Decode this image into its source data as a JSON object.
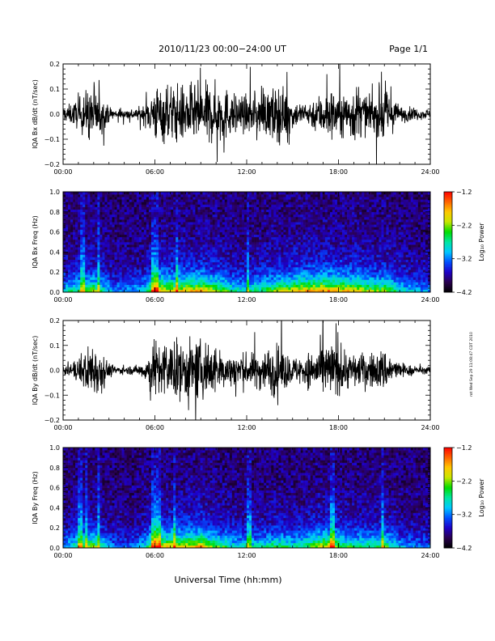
{
  "header": {
    "title": "2010/11/23  00:00−24:00 UT",
    "page_label": "Page 1/1"
  },
  "footer": {
    "xaxis_title": "Universal Time (hh:mm)",
    "timestamp": "rot Wed Sep 29 11:08:47 CDT 2010"
  },
  "colors": {
    "waveform": "#000000",
    "colormap": [
      "#000000",
      "#2a0050",
      "#1e00c8",
      "#0050ff",
      "#00c8ff",
      "#00e6a0",
      "#00dc00",
      "#c8e600",
      "#ffc800",
      "#ff6400",
      "#ff0000"
    ]
  },
  "chart_data": [
    {
      "type": "line",
      "ylabel": "IQA Bx dB/dt (nT/sec)",
      "xlim": [
        0,
        24
      ],
      "ylim": [
        -0.2,
        0.2
      ],
      "x_ticks": [
        "00:00",
        "06:00",
        "12:00",
        "18:00",
        "24:00"
      ],
      "y_ticks": [
        "−0.2",
        "−0.1",
        "0.0",
        "0.1",
        "0.2"
      ],
      "envelope_hours": [
        0,
        0.5,
        1,
        1.5,
        2,
        2.5,
        3,
        3.5,
        4,
        4.5,
        5,
        5.5,
        6,
        6.5,
        7,
        7.5,
        8,
        8.5,
        9,
        9.5,
        10,
        10.5,
        11,
        11.5,
        12,
        12.5,
        13,
        13.5,
        14,
        14.5,
        15,
        15.5,
        16,
        16.5,
        17,
        17.5,
        18,
        18.5,
        19,
        19.5,
        20,
        20.5,
        21,
        21.5,
        22,
        22.5,
        23,
        23.5,
        24
      ],
      "envelope_amplitude": [
        0.05,
        0.07,
        0.1,
        0.16,
        0.2,
        0.12,
        0.05,
        0.035,
        0.03,
        0.04,
        0.045,
        0.09,
        0.2,
        0.2,
        0.2,
        0.2,
        0.2,
        0.2,
        0.2,
        0.2,
        0.2,
        0.2,
        0.14,
        0.13,
        0.12,
        0.13,
        0.13,
        0.16,
        0.2,
        0.17,
        0.1,
        0.08,
        0.08,
        0.12,
        0.15,
        0.18,
        0.15,
        0.14,
        0.2,
        0.16,
        0.1,
        0.15,
        0.2,
        0.12,
        0.06,
        0.05,
        0.04,
        0.035,
        0.03
      ]
    },
    {
      "type": "heatmap",
      "ylabel": "IQA Bx Freq (Hz)",
      "xlim": [
        0,
        24
      ],
      "ylim": [
        0,
        1
      ],
      "x_ticks": [
        "00:00",
        "06:00",
        "12:00",
        "18:00",
        "24:00"
      ],
      "y_ticks": [
        "0.0",
        "0.2",
        "0.4",
        "0.6",
        "0.8",
        "1.0"
      ],
      "colorbar_label": "Log₁₀ Power",
      "colorbar_range": [
        -4.2,
        -1.2
      ],
      "colorbar_ticks": [
        "−1.2",
        "−2.2",
        "−3.2",
        "−4.2"
      ],
      "activity_hours": [
        0,
        0.5,
        1,
        1.5,
        2,
        2.5,
        3,
        3.5,
        4,
        4.5,
        5,
        5.5,
        6,
        6.5,
        7,
        7.5,
        8,
        8.5,
        9,
        9.5,
        10,
        10.5,
        11,
        11.5,
        12,
        12.5,
        13,
        13.5,
        14,
        14.5,
        15,
        15.5,
        16,
        16.5,
        17,
        17.5,
        18,
        18.5,
        19,
        19.5,
        20,
        20.5,
        21,
        21.5,
        22,
        22.5,
        23,
        23.5,
        24
      ],
      "activity_level": [
        0.35,
        0.45,
        0.55,
        0.6,
        0.65,
        0.5,
        0.35,
        0.3,
        0.28,
        0.3,
        0.35,
        0.5,
        0.8,
        0.8,
        0.75,
        0.75,
        0.8,
        0.8,
        0.85,
        0.75,
        0.7,
        0.65,
        0.5,
        0.45,
        0.45,
        0.5,
        0.55,
        0.6,
        0.7,
        0.7,
        0.75,
        0.8,
        0.85,
        0.85,
        0.9,
        0.9,
        0.85,
        0.8,
        0.8,
        0.75,
        0.65,
        0.65,
        0.7,
        0.55,
        0.45,
        0.4,
        0.35,
        0.3,
        0.3
      ],
      "vertical_streaks_hours": [
        1.3,
        2.3,
        5.9,
        6.15,
        7.4,
        12.1
      ]
    },
    {
      "type": "line",
      "ylabel": "IQA By dB/dt (nT/sec)",
      "xlim": [
        0,
        24
      ],
      "ylim": [
        -0.2,
        0.2
      ],
      "x_ticks": [
        "00:00",
        "06:00",
        "12:00",
        "18:00",
        "24:00"
      ],
      "y_ticks": [
        "−0.2",
        "−0.1",
        "0.0",
        "0.1",
        "0.2"
      ],
      "envelope_hours": [
        0,
        0.5,
        1,
        1.5,
        2,
        2.5,
        3,
        3.5,
        4,
        4.5,
        5,
        5.5,
        6,
        6.5,
        7,
        7.5,
        8,
        8.5,
        9,
        9.5,
        10,
        10.5,
        11,
        11.5,
        12,
        12.5,
        13,
        13.5,
        14,
        14.5,
        15,
        15.5,
        16,
        16.5,
        17,
        17.5,
        18,
        18.5,
        19,
        19.5,
        20,
        20.5,
        21,
        21.5,
        22,
        22.5,
        23,
        23.5,
        24
      ],
      "envelope_amplitude": [
        0.03,
        0.05,
        0.09,
        0.15,
        0.2,
        0.15,
        0.05,
        0.03,
        0.025,
        0.03,
        0.04,
        0.09,
        0.2,
        0.2,
        0.2,
        0.2,
        0.2,
        0.2,
        0.2,
        0.2,
        0.16,
        0.12,
        0.12,
        0.13,
        0.11,
        0.12,
        0.14,
        0.16,
        0.18,
        0.13,
        0.09,
        0.1,
        0.12,
        0.15,
        0.18,
        0.2,
        0.15,
        0.14,
        0.12,
        0.11,
        0.12,
        0.13,
        0.15,
        0.1,
        0.05,
        0.04,
        0.03,
        0.025,
        0.02
      ]
    },
    {
      "type": "heatmap",
      "ylabel": "IQA By Freq (Hz)",
      "xlim": [
        0,
        24
      ],
      "ylim": [
        0,
        1
      ],
      "x_ticks": [
        "00:00",
        "06:00",
        "12:00",
        "18:00",
        "24:00"
      ],
      "y_ticks": [
        "0.0",
        "0.2",
        "0.4",
        "0.6",
        "0.8",
        "1.0"
      ],
      "colorbar_label": "Log₁₀ Power",
      "colorbar_range": [
        -4.2,
        -1.2
      ],
      "colorbar_ticks": [
        "−1.2",
        "−2.2",
        "−3.2",
        "−4.2"
      ],
      "activity_hours": [
        0,
        0.5,
        1,
        1.5,
        2,
        2.5,
        3,
        3.5,
        4,
        4.5,
        5,
        5.5,
        6,
        6.5,
        7,
        7.5,
        8,
        8.5,
        9,
        9.5,
        10,
        10.5,
        11,
        11.5,
        12,
        12.5,
        13,
        13.5,
        14,
        14.5,
        15,
        15.5,
        16,
        16.5,
        17,
        17.5,
        18,
        18.5,
        19,
        19.5,
        20,
        20.5,
        21,
        21.5,
        22,
        22.5,
        23,
        23.5,
        24
      ],
      "activity_level": [
        0.3,
        0.4,
        0.55,
        0.6,
        0.65,
        0.5,
        0.3,
        0.25,
        0.22,
        0.25,
        0.3,
        0.5,
        0.8,
        0.8,
        0.75,
        0.75,
        0.8,
        0.8,
        0.85,
        0.7,
        0.6,
        0.55,
        0.45,
        0.4,
        0.4,
        0.42,
        0.45,
        0.5,
        0.55,
        0.5,
        0.45,
        0.5,
        0.55,
        0.65,
        0.75,
        0.75,
        0.6,
        0.55,
        0.55,
        0.5,
        0.5,
        0.55,
        0.6,
        0.45,
        0.35,
        0.3,
        0.28,
        0.25,
        0.25
      ],
      "vertical_streaks_hours": [
        1.1,
        1.5,
        2.3,
        5.95,
        6.2,
        7.3,
        12.15,
        17.6,
        20.9
      ]
    }
  ]
}
